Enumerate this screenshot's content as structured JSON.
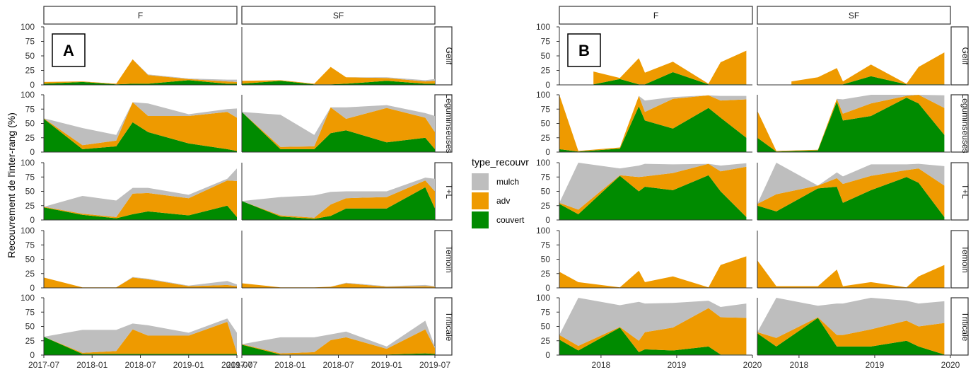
{
  "chart_data": {
    "type": "area",
    "ylabel": "Recouvrement de l'inter-rang (%)",
    "ylim": [
      0,
      100
    ],
    "yticks": [
      0,
      25,
      50,
      75,
      100
    ],
    "colors": {
      "mulch": "#bebebe",
      "adv": "#ee9a00",
      "couvert": "#008b00"
    },
    "legend": {
      "title": "type_recouvr",
      "position": "center",
      "entries": [
        "mulch",
        "adv",
        "couvert"
      ]
    },
    "stack_order": [
      "couvert",
      "adv",
      "mulch"
    ],
    "cols": [
      "F",
      "SF"
    ],
    "rows": [
      "Gelif",
      "Leguminseuses",
      "T+L",
      "Temoin",
      "Triticale"
    ],
    "row_display": [
      "Gelif",
      "Leguminseuses",
      "T+L",
      "Temoin",
      "Triticale"
    ],
    "panels": [
      {
        "letter": "A",
        "xlim": [
          2017.5,
          2019.5
        ],
        "xticks": [
          {
            "v": 2017.5,
            "label": "2017-07"
          },
          {
            "v": 2018.0,
            "label": "2018-01"
          },
          {
            "v": 2018.5,
            "label": "2018-07"
          },
          {
            "v": 2019.0,
            "label": "2019-01"
          },
          {
            "v": 2019.5,
            "label": "2019-07"
          }
        ],
        "facets": {
          "F": {
            "Gelif": {
              "x": [
                2017.5,
                2017.9,
                2018.25,
                2018.42,
                2018.58,
                2019.0,
                2019.4,
                2019.5
              ],
              "couvert": [
                2,
                5,
                1,
                2,
                2,
                8,
                2,
                2
              ],
              "adv": [
                3,
                1,
                1,
                42,
                15,
                2,
                4,
                3
              ],
              "mulch": [
                0,
                0,
                0,
                0,
                1,
                1,
                3,
                4
              ]
            },
            "Leguminseuses": {
              "x": [
                2017.5,
                2017.9,
                2018.25,
                2018.42,
                2018.58,
                2019.0,
                2019.4,
                2019.5
              ],
              "couvert": [
                58,
                5,
                10,
                52,
                35,
                15,
                5,
                2
              ],
              "adv": [
                1,
                7,
                10,
                35,
                28,
                48,
                65,
                58
              ],
              "mulch": [
                0,
                30,
                10,
                0,
                22,
                3,
                5,
                16
              ]
            },
            "T+L": {
              "x": [
                2017.5,
                2017.9,
                2018.25,
                2018.42,
                2018.58,
                2019.0,
                2019.4,
                2019.5
              ],
              "couvert": [
                22,
                9,
                3,
                10,
                15,
                8,
                25,
                5
              ],
              "adv": [
                1,
                2,
                2,
                36,
                32,
                30,
                44,
                63
              ],
              "mulch": [
                0,
                31,
                29,
                10,
                9,
                6,
                3,
                22
              ]
            },
            "Temoin": {
              "x": [
                2017.5,
                2017.9,
                2018.25,
                2018.42,
                2018.58,
                2019.0,
                2019.4,
                2019.5
              ],
              "couvert": [
                0,
                0,
                0,
                0,
                0,
                0,
                0,
                0
              ],
              "adv": [
                18,
                1,
                1,
                18,
                15,
                3,
                5,
                3
              ],
              "mulch": [
                0,
                0,
                0,
                1,
                1,
                1,
                7,
                3
              ]
            },
            "Triticale": {
              "x": [
                2017.5,
                2017.9,
                2018.25,
                2018.42,
                2018.58,
                2019.0,
                2019.4,
                2019.5
              ],
              "couvert": [
                32,
                2,
                2,
                2,
                2,
                2,
                2,
                2
              ],
              "adv": [
                0,
                2,
                5,
                43,
                32,
                32,
                56,
                2
              ],
              "mulch": [
                0,
                40,
                37,
                10,
                18,
                5,
                6,
                35
              ]
            }
          },
          "SF": {
            "Gelif": {
              "x": [
                2017.5,
                2017.9,
                2018.25,
                2018.42,
                2018.58,
                2019.0,
                2019.4,
                2019.5
              ],
              "couvert": [
                2,
                7,
                1,
                1,
                2,
                7,
                2,
                2
              ],
              "adv": [
                5,
                1,
                1,
                30,
                11,
                5,
                4,
                5
              ],
              "mulch": [
                0,
                0,
                0,
                0,
                0,
                1,
                2,
                3
              ]
            },
            "Leguminseuses": {
              "x": [
                2017.5,
                2017.9,
                2018.25,
                2018.42,
                2018.58,
                2019.0,
                2019.4,
                2019.5
              ],
              "couvert": [
                70,
                5,
                5,
                33,
                38,
                17,
                25,
                5
              ],
              "adv": [
                0,
                4,
                5,
                45,
                20,
                60,
                35,
                30
              ],
              "mulch": [
                0,
                56,
                20,
                0,
                20,
                5,
                8,
                28
              ]
            },
            "T+L": {
              "x": [
                2017.5,
                2017.9,
                2018.25,
                2018.42,
                2018.58,
                2019.0,
                2019.4,
                2019.5
              ],
              "couvert": [
                33,
                6,
                2,
                7,
                20,
                20,
                57,
                20
              ],
              "adv": [
                0,
                2,
                2,
                20,
                18,
                20,
                12,
                30
              ],
              "mulch": [
                0,
                32,
                39,
                22,
                12,
                10,
                5,
                22
              ]
            },
            "Temoin": {
              "x": [
                2017.5,
                2017.9,
                2018.25,
                2018.42,
                2018.58,
                2019.0,
                2019.4,
                2019.5
              ],
              "couvert": [
                0,
                0,
                0,
                0,
                0,
                0,
                0,
                0
              ],
              "adv": [
                8,
                1,
                1,
                2,
                8,
                2,
                3,
                2
              ],
              "mulch": [
                0,
                0,
                0,
                0,
                1,
                1,
                2,
                1
              ]
            },
            "Triticale": {
              "x": [
                2017.5,
                2017.9,
                2018.25,
                2018.42,
                2018.58,
                2019.0,
                2019.4,
                2019.5
              ],
              "couvert": [
                18,
                1,
                1,
                1,
                1,
                1,
                3,
                2
              ],
              "adv": [
                1,
                2,
                4,
                25,
                30,
                10,
                42,
                10
              ],
              "mulch": [
                0,
                28,
                26,
                10,
                10,
                4,
                15,
                3
              ]
            }
          }
        }
      },
      {
        "letter": "B",
        "xlim": [
          2017.45,
          2020.0
        ],
        "xticks": [
          {
            "v": 2018,
            "label": "2018"
          },
          {
            "v": 2019,
            "label": "2019"
          },
          {
            "v": 2020,
            "label": "2020"
          }
        ],
        "facets": {
          "F": {
            "Gelif": {
              "x": [
                2017.9,
                2018.25,
                2018.5,
                2018.58,
                2018.95,
                2019.42,
                2019.58,
                2019.92
              ],
              "couvert": [
                1,
                10,
                1,
                1,
                22,
                1,
                1,
                1
              ],
              "adv": [
                22,
                2,
                45,
                20,
                18,
                1,
                38,
                58
              ],
              "mulch": [
                0,
                0,
                0,
                0,
                0,
                0,
                0,
                0
              ]
            },
            "Leguminseuses": {
              "x": [
                2017.45,
                2017.7,
                2018.25,
                2018.5,
                2018.58,
                2018.95,
                2019.42,
                2019.58,
                2019.92
              ],
              "couvert": [
                5,
                1,
                6,
                80,
                55,
                41,
                77,
                60,
                25
              ],
              "adv": [
                95,
                1,
                2,
                18,
                15,
                52,
                22,
                30,
                67
              ],
              "mulch": [
                0,
                0,
                0,
                0,
                20,
                3,
                0,
                8,
                6
              ]
            },
            "T+L": {
              "x": [
                2017.45,
                2017.7,
                2018.25,
                2018.5,
                2018.58,
                2018.95,
                2019.42,
                2019.58,
                2019.92
              ],
              "couvert": [
                28,
                10,
                77,
                50,
                58,
                52,
                78,
                50,
                5
              ],
              "adv": [
                2,
                8,
                1,
                25,
                18,
                30,
                20,
                35,
                88
              ],
              "mulch": [
                0,
                82,
                12,
                20,
                22,
                15,
                0,
                10,
                6
              ]
            },
            "Temoin": {
              "x": [
                2017.45,
                2017.7,
                2018.25,
                2018.5,
                2018.58,
                2018.95,
                2019.42,
                2019.58,
                2019.92
              ],
              "couvert": [
                0,
                0,
                0,
                0,
                0,
                0,
                0,
                0,
                0
              ],
              "adv": [
                28,
                10,
                1,
                30,
                10,
                20,
                1,
                40,
                55
              ],
              "mulch": [
                0,
                0,
                0,
                0,
                0,
                0,
                0,
                0,
                0
              ]
            },
            "Triticale": {
              "x": [
                2017.45,
                2017.7,
                2018.25,
                2018.5,
                2018.58,
                2018.95,
                2019.42,
                2019.58,
                2019.92
              ],
              "couvert": [
                27,
                8,
                48,
                5,
                10,
                8,
                15,
                1,
                1
              ],
              "adv": [
                8,
                8,
                1,
                20,
                30,
                40,
                67,
                65,
                64
              ],
              "mulch": [
                0,
                84,
                38,
                68,
                50,
                43,
                13,
                18,
                25
              ]
            }
          },
          "SF": {
            "Gelif": {
              "x": [
                2017.9,
                2018.25,
                2018.5,
                2018.58,
                2018.95,
                2019.42,
                2019.58,
                2019.92
              ],
              "couvert": [
                1,
                1,
                1,
                1,
                15,
                1,
                1,
                1
              ],
              "adv": [
                5,
                12,
                28,
                5,
                20,
                1,
                30,
                55
              ],
              "mulch": [
                0,
                0,
                0,
                0,
                0,
                0,
                0,
                0
              ]
            },
            "Leguminseuses": {
              "x": [
                2017.45,
                2017.7,
                2018.25,
                2018.5,
                2018.58,
                2018.95,
                2019.42,
                2019.58,
                2019.92
              ],
              "couvert": [
                25,
                1,
                3,
                88,
                55,
                63,
                95,
                85,
                30
              ],
              "adv": [
                47,
                1,
                1,
                5,
                12,
                22,
                3,
                15,
                47
              ],
              "mulch": [
                0,
                0,
                0,
                0,
                25,
                15,
                2,
                0,
                22
              ]
            },
            "T+L": {
              "x": [
                2017.45,
                2017.7,
                2018.25,
                2018.5,
                2018.58,
                2018.95,
                2019.42,
                2019.58,
                2019.92
              ],
              "couvert": [
                25,
                15,
                55,
                58,
                30,
                52,
                75,
                65,
                5
              ],
              "adv": [
                3,
                30,
                5,
                15,
                33,
                25,
                12,
                25,
                55
              ],
              "mulch": [
                0,
                55,
                0,
                10,
                13,
                20,
                10,
                8,
                34
              ]
            },
            "Temoin": {
              "x": [
                2017.45,
                2017.7,
                2018.25,
                2018.5,
                2018.58,
                2018.95,
                2019.42,
                2019.58,
                2019.92
              ],
              "couvert": [
                0,
                0,
                0,
                0,
                0,
                0,
                0,
                0,
                0
              ],
              "adv": [
                48,
                3,
                3,
                32,
                3,
                10,
                1,
                20,
                40
              ],
              "mulch": [
                0,
                0,
                0,
                0,
                0,
                0,
                0,
                0,
                0
              ]
            },
            "Triticale": {
              "x": [
                2017.45,
                2017.7,
                2018.25,
                2018.5,
                2018.58,
                2018.95,
                2019.42,
                2019.58,
                2019.92
              ],
              "couvert": [
                38,
                15,
                65,
                15,
                15,
                15,
                25,
                15,
                1
              ],
              "adv": [
                2,
                15,
                1,
                20,
                20,
                30,
                35,
                35,
                55
              ],
              "mulch": [
                0,
                70,
                20,
                55,
                55,
                55,
                35,
                40,
                38
              ]
            }
          }
        }
      }
    ]
  }
}
